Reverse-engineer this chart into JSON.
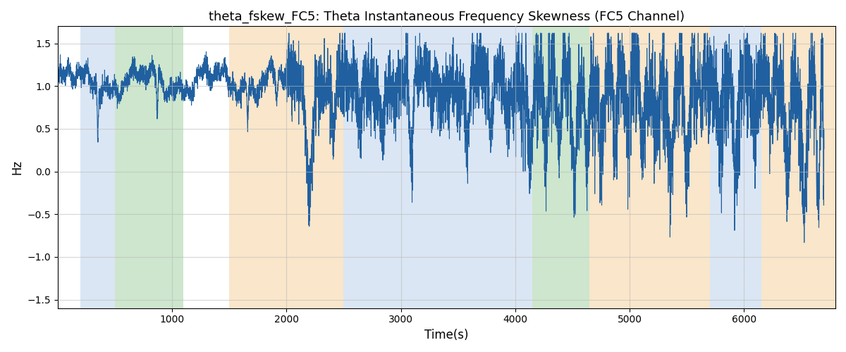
{
  "title": "theta_fskew_FC5: Theta Instantaneous Frequency Skewness (FC5 Channel)",
  "xlabel": "Time(s)",
  "ylabel": "Hz",
  "ylim": [
    -1.6,
    1.7
  ],
  "xlim": [
    0,
    6800
  ],
  "line_color": "#2060a0",
  "line_width": 0.8,
  "background_regions": [
    {
      "start": 200,
      "end": 500,
      "color": "#adc8e8",
      "alpha": 0.45
    },
    {
      "start": 500,
      "end": 1100,
      "color": "#90c990",
      "alpha": 0.45
    },
    {
      "start": 1500,
      "end": 2500,
      "color": "#f5c98a",
      "alpha": 0.45
    },
    {
      "start": 2500,
      "end": 3950,
      "color": "#adc8e8",
      "alpha": 0.45
    },
    {
      "start": 3950,
      "end": 4150,
      "color": "#adc8e8",
      "alpha": 0.45
    },
    {
      "start": 4150,
      "end": 4650,
      "color": "#90c990",
      "alpha": 0.45
    },
    {
      "start": 4650,
      "end": 5700,
      "color": "#f5c98a",
      "alpha": 0.45
    },
    {
      "start": 5700,
      "end": 6150,
      "color": "#adc8e8",
      "alpha": 0.45
    },
    {
      "start": 6150,
      "end": 6800,
      "color": "#f5c98a",
      "alpha": 0.45
    }
  ],
  "yticks": [
    -1.5,
    -1.0,
    -0.5,
    0.0,
    0.5,
    1.0,
    1.5
  ],
  "xticks": [
    1000,
    2000,
    3000,
    4000,
    5000,
    6000
  ],
  "grid_color": "#bbbbbb",
  "grid_alpha": 0.6,
  "title_fontsize": 13,
  "seed": 12345,
  "n_points": 6700
}
